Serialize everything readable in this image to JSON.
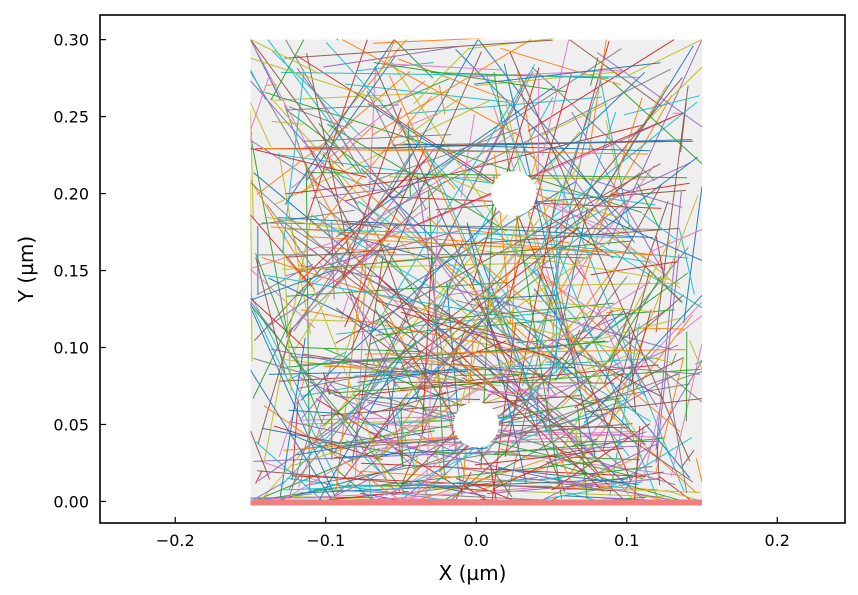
{
  "chart_data": {
    "type": "line",
    "title": "",
    "xlabel": "X (µm)",
    "ylabel": "Y (µm)",
    "xlim": [
      -0.25,
      0.245
    ],
    "ylim": [
      -0.014,
      0.316
    ],
    "xticks": [
      -0.2,
      -0.1,
      0.0,
      0.1,
      0.2
    ],
    "xtick_labels": [
      "−0.2",
      "−0.1",
      "0.0",
      "0.1",
      "0.2"
    ],
    "yticks": [
      0.0,
      0.05,
      0.1,
      0.15,
      0.2,
      0.25,
      0.3
    ],
    "ytick_labels": [
      "0.00",
      "0.05",
      "0.10",
      "0.15",
      "0.20",
      "0.25",
      "0.30"
    ],
    "grid": false,
    "legend": "none",
    "domain_region": {
      "x": [
        -0.15,
        0.15
      ],
      "y": [
        0.0,
        0.3
      ],
      "color": "#efefef"
    },
    "circular_voids": [
      {
        "cx": 0.025,
        "cy": 0.2,
        "r": 0.015
      },
      {
        "cx": 0.0,
        "cy": 0.05,
        "r": 0.015
      }
    ],
    "substrate_line": {
      "x": [
        -0.15,
        0.15
      ],
      "y": 0.0,
      "color": "#f08080"
    },
    "trajectories": {
      "description": "Many straight-line random-walk trajectories (several hundred segments) bouncing within the domain; densest near y = 0.",
      "num_segments": 600,
      "palette": [
        "#1f77b4",
        "#ff7f0e",
        "#2ca02c",
        "#d62728",
        "#9467bd",
        "#8c564b",
        "#e377c2",
        "#7f7f7f",
        "#bcbd22",
        "#17becf"
      ]
    }
  }
}
